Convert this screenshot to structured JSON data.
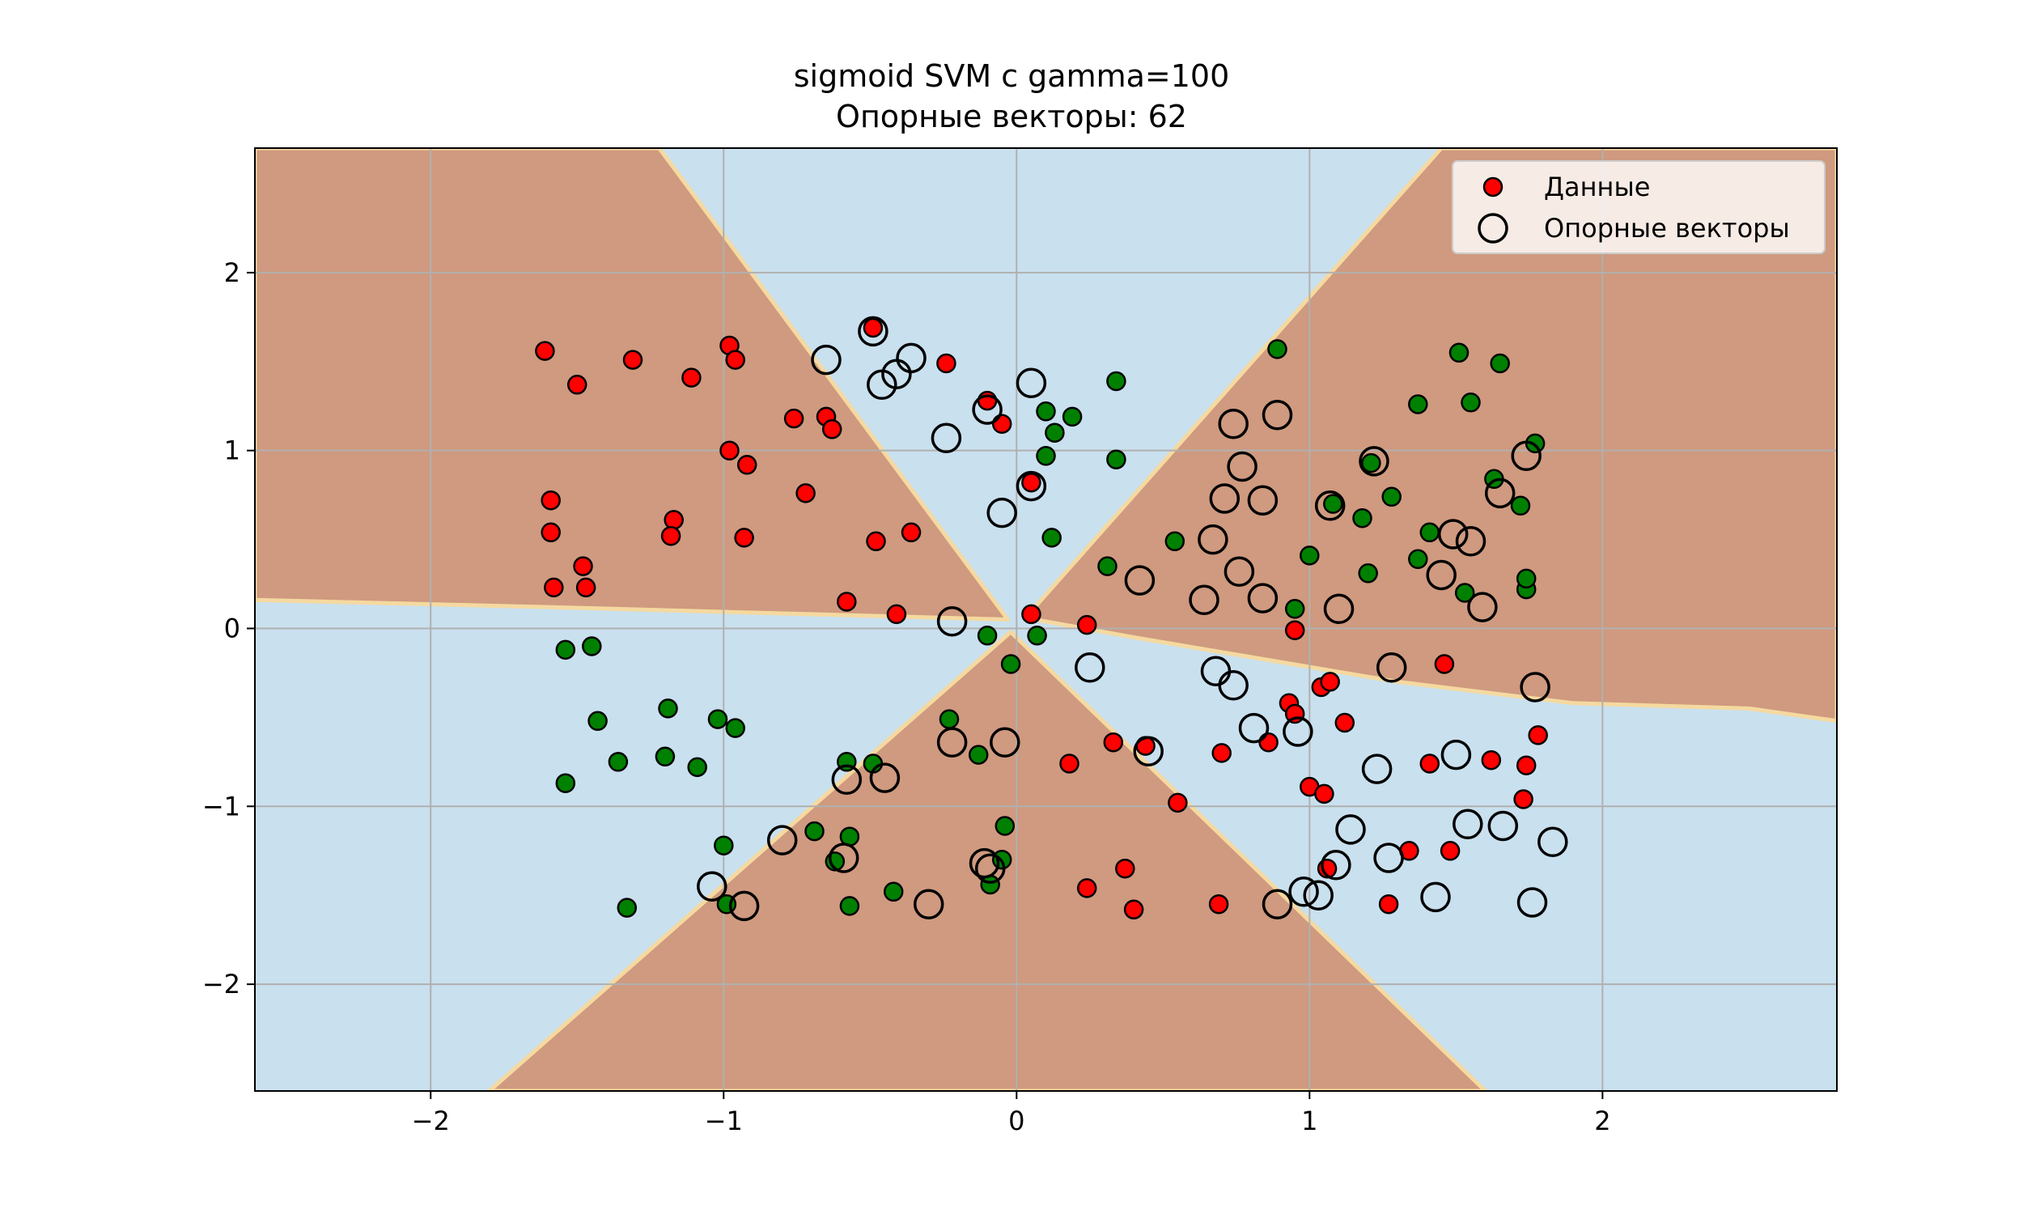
{
  "chart_data": {
    "type": "scatter",
    "title": "sigmoid SVM с gamma=100",
    "subtitle": "Опорные векторы: 62",
    "xlabel": "",
    "ylabel": "",
    "xlim": [
      -2.6,
      2.8
    ],
    "ylim": [
      -2.6,
      2.7
    ],
    "grid": true,
    "legend_position": "top-right",
    "x_ticks": [
      -2,
      -1,
      0,
      1,
      2
    ],
    "y_ticks": [
      -2,
      -1,
      0,
      1,
      2
    ],
    "x_tick_labels": [
      "−2",
      "−1",
      "0",
      "1",
      "2"
    ],
    "y_tick_labels": [
      "−2",
      "−1",
      "0",
      "1",
      "2"
    ],
    "legend": {
      "data_label": "Данные",
      "support_label": "Опорные векторы"
    },
    "colors": {
      "class_pos": "#ff0000",
      "class_neg": "#008000",
      "region_pos": "#cf9a7f",
      "region_neg": "#c9e0ee",
      "boundary_light": "#f5d9a0",
      "grid": "#b0b0b0"
    },
    "decision_regions": {
      "pos_regions": [
        [
          [
            -2.6,
            2.7
          ],
          [
            -1.22,
            2.7
          ],
          [
            -0.03,
            0.05
          ],
          [
            -1.6,
            0.12
          ],
          [
            -2.6,
            0.16
          ]
        ],
        [
          [
            1.45,
            2.7
          ],
          [
            2.8,
            2.7
          ],
          [
            2.8,
            -0.52
          ],
          [
            2.5,
            -0.45
          ],
          [
            1.9,
            -0.42
          ],
          [
            1.3,
            -0.3
          ],
          [
            0.4,
            -0.05
          ],
          [
            0.03,
            0.06
          ]
        ],
        [
          [
            -1.8,
            -2.6
          ],
          [
            -0.02,
            -0.02
          ],
          [
            1.6,
            -2.6
          ]
        ]
      ]
    },
    "series": [
      {
        "name": "Данные",
        "class": "red",
        "points": [
          [
            -1.61,
            1.56
          ],
          [
            -1.5,
            1.37
          ],
          [
            -1.31,
            1.51
          ],
          [
            -1.11,
            1.41
          ],
          [
            -0.98,
            1.59
          ],
          [
            -0.96,
            1.51
          ],
          [
            -1.59,
            0.72
          ],
          [
            -1.59,
            0.54
          ],
          [
            -1.48,
            0.35
          ],
          [
            -1.58,
            0.23
          ],
          [
            -1.47,
            0.23
          ],
          [
            -1.17,
            0.61
          ],
          [
            -1.18,
            0.52
          ],
          [
            -0.98,
            1.0
          ],
          [
            -0.92,
            0.92
          ],
          [
            -0.93,
            0.51
          ],
          [
            -0.76,
            1.18
          ],
          [
            -0.65,
            1.19
          ],
          [
            -0.63,
            1.12
          ],
          [
            -0.72,
            0.76
          ],
          [
            -0.48,
            0.49
          ],
          [
            -0.36,
            0.54
          ],
          [
            -0.58,
            0.15
          ],
          [
            -0.41,
            0.08
          ],
          [
            -0.49,
            1.69
          ],
          [
            -0.24,
            1.49
          ],
          [
            -0.1,
            1.28
          ],
          [
            -0.05,
            1.15
          ],
          [
            0.05,
            0.82
          ],
          [
            0.05,
            0.08
          ],
          [
            0.24,
            0.02
          ],
          [
            0.95,
            -0.01
          ],
          [
            1.46,
            -0.2
          ],
          [
            1.04,
            -0.33
          ],
          [
            1.07,
            -0.3
          ],
          [
            0.93,
            -0.42
          ],
          [
            0.95,
            -0.48
          ],
          [
            1.12,
            -0.53
          ],
          [
            0.7,
            -0.7
          ],
          [
            0.86,
            -0.64
          ],
          [
            0.44,
            -0.66
          ],
          [
            0.33,
            -0.64
          ],
          [
            0.18,
            -0.76
          ],
          [
            1.0,
            -0.89
          ],
          [
            1.05,
            -0.93
          ],
          [
            1.41,
            -0.76
          ],
          [
            1.62,
            -0.74
          ],
          [
            1.74,
            -0.77
          ],
          [
            1.78,
            -0.6
          ],
          [
            1.73,
            -0.96
          ],
          [
            0.55,
            -0.98
          ],
          [
            1.06,
            -1.35
          ],
          [
            1.34,
            -1.25
          ],
          [
            1.48,
            -1.25
          ],
          [
            1.27,
            -1.55
          ],
          [
            0.69,
            -1.55
          ],
          [
            0.24,
            -1.46
          ],
          [
            0.37,
            -1.35
          ],
          [
            0.4,
            -1.58
          ]
        ]
      },
      {
        "name": "Данные",
        "class": "green",
        "points": [
          [
            0.89,
            1.57
          ],
          [
            0.34,
            1.39
          ],
          [
            0.1,
            1.22
          ],
          [
            0.13,
            1.1
          ],
          [
            0.19,
            1.19
          ],
          [
            0.1,
            0.97
          ],
          [
            0.34,
            0.95
          ],
          [
            0.12,
            0.51
          ],
          [
            0.31,
            0.35
          ],
          [
            0.54,
            0.49
          ],
          [
            1.0,
            0.41
          ],
          [
            0.95,
            0.11
          ],
          [
            1.51,
            1.55
          ],
          [
            1.65,
            1.49
          ],
          [
            1.37,
            1.26
          ],
          [
            1.55,
            1.27
          ],
          [
            1.21,
            0.93
          ],
          [
            1.28,
            0.74
          ],
          [
            1.08,
            0.7
          ],
          [
            1.18,
            0.62
          ],
          [
            1.77,
            1.04
          ],
          [
            1.63,
            0.84
          ],
          [
            1.72,
            0.69
          ],
          [
            1.41,
            0.54
          ],
          [
            1.37,
            0.39
          ],
          [
            1.2,
            0.31
          ],
          [
            1.53,
            0.2
          ],
          [
            1.74,
            0.22
          ],
          [
            1.74,
            0.28
          ],
          [
            -0.1,
            -0.04
          ],
          [
            0.07,
            -0.04
          ],
          [
            -0.02,
            -0.2
          ],
          [
            -1.54,
            -0.12
          ],
          [
            -1.45,
            -0.1
          ],
          [
            -1.43,
            -0.52
          ],
          [
            -1.36,
            -0.75
          ],
          [
            -1.2,
            -0.72
          ],
          [
            -1.19,
            -0.45
          ],
          [
            -1.02,
            -0.51
          ],
          [
            -0.96,
            -0.56
          ],
          [
            -1.09,
            -0.78
          ],
          [
            -1.54,
            -0.87
          ],
          [
            -0.23,
            -0.51
          ],
          [
            -0.13,
            -0.71
          ],
          [
            -0.58,
            -0.75
          ],
          [
            -0.49,
            -0.76
          ],
          [
            -0.69,
            -1.14
          ],
          [
            -0.57,
            -1.17
          ],
          [
            -0.62,
            -1.31
          ],
          [
            -0.04,
            -1.11
          ],
          [
            -0.05,
            -1.3
          ],
          [
            -0.09,
            -1.44
          ],
          [
            -0.42,
            -1.48
          ],
          [
            -0.57,
            -1.56
          ],
          [
            -1.0,
            -1.22
          ],
          [
            -0.99,
            -1.55
          ],
          [
            -1.33,
            -1.57
          ]
        ]
      },
      {
        "name": "Опорные векторы",
        "class": "support",
        "points": [
          [
            -0.49,
            1.67
          ],
          [
            -0.36,
            1.52
          ],
          [
            -0.41,
            1.43
          ],
          [
            -0.46,
            1.37
          ],
          [
            -0.65,
            1.51
          ],
          [
            0.05,
            1.38
          ],
          [
            -0.1,
            1.23
          ],
          [
            -0.24,
            1.07
          ],
          [
            0.05,
            0.8
          ],
          [
            -0.05,
            0.65
          ],
          [
            -0.22,
            0.04
          ],
          [
            0.74,
            1.15
          ],
          [
            0.89,
            1.2
          ],
          [
            0.77,
            0.91
          ],
          [
            0.71,
            0.73
          ],
          [
            0.84,
            0.72
          ],
          [
            0.67,
            0.5
          ],
          [
            0.76,
            0.32
          ],
          [
            0.84,
            0.17
          ],
          [
            0.64,
            0.16
          ],
          [
            0.42,
            0.27
          ],
          [
            0.25,
            -0.22
          ],
          [
            0.68,
            -0.24
          ],
          [
            0.74,
            -0.32
          ],
          [
            0.81,
            -0.56
          ],
          [
            0.96,
            -0.58
          ],
          [
            1.22,
            0.94
          ],
          [
            1.07,
            0.69
          ],
          [
            1.1,
            0.11
          ],
          [
            1.28,
            -0.22
          ],
          [
            1.49,
            0.53
          ],
          [
            1.55,
            0.49
          ],
          [
            1.45,
            0.3
          ],
          [
            1.59,
            0.12
          ],
          [
            1.74,
            0.97
          ],
          [
            1.65,
            0.76
          ],
          [
            1.77,
            -0.33
          ],
          [
            -0.22,
            -0.64
          ],
          [
            -0.04,
            -0.64
          ],
          [
            -0.58,
            -0.85
          ],
          [
            -0.45,
            -0.84
          ],
          [
            0.45,
            -0.69
          ],
          [
            1.23,
            -0.79
          ],
          [
            1.5,
            -0.71
          ],
          [
            1.14,
            -1.13
          ],
          [
            1.54,
            -1.1
          ],
          [
            1.66,
            -1.11
          ],
          [
            1.83,
            -1.2
          ],
          [
            -0.8,
            -1.19
          ],
          [
            -0.59,
            -1.29
          ],
          [
            -0.11,
            -1.32
          ],
          [
            -0.09,
            -1.35
          ],
          [
            1.09,
            -1.33
          ],
          [
            1.27,
            -1.29
          ],
          [
            -1.04,
            -1.45
          ],
          [
            -0.93,
            -1.56
          ],
          [
            -0.3,
            -1.55
          ],
          [
            0.89,
            -1.55
          ],
          [
            0.98,
            -1.48
          ],
          [
            1.03,
            -1.5
          ],
          [
            1.43,
            -1.51
          ],
          [
            1.76,
            -1.54
          ]
        ]
      }
    ]
  }
}
